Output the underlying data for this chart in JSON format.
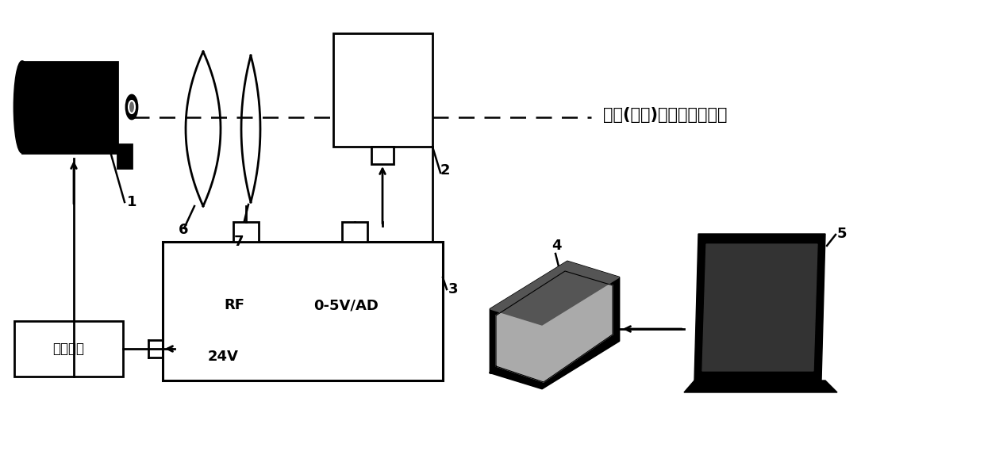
{
  "background_color": "#ffffff",
  "label_1": "1",
  "label_2": "2",
  "label_3": "3",
  "label_4": "4",
  "label_5": "5",
  "label_6": "6",
  "label_7": "7",
  "annotation_right": "弹丸(破片)模拟过靶光信号",
  "label_RF": "RF",
  "label_AD": "0-5V/AD",
  "label_24V": "24V",
  "label_power": "供电电源",
  "line_color": "#000000"
}
